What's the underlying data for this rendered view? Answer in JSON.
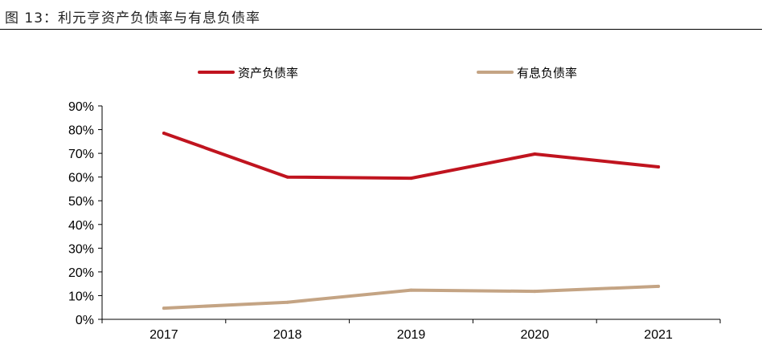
{
  "figure": {
    "title": "图 13：利元亨资产负债率与有息负债率"
  },
  "chart_data": {
    "type": "line",
    "categories": [
      "2017",
      "2018",
      "2019",
      "2020",
      "2021"
    ],
    "series": [
      {
        "name": "资产负债率",
        "color": "#c0141f",
        "values": [
          78.5,
          60.0,
          59.5,
          69.7,
          64.3
        ]
      },
      {
        "name": "有息负债率",
        "color": "#c4a484",
        "values": [
          4.7,
          7.2,
          12.3,
          11.8,
          13.9
        ]
      }
    ],
    "ylim": [
      0,
      90
    ],
    "yticks": [
      "0%",
      "10%",
      "20%",
      "30%",
      "40%",
      "50%",
      "60%",
      "70%",
      "80%",
      "90%"
    ],
    "grid": false,
    "legend": "top"
  }
}
